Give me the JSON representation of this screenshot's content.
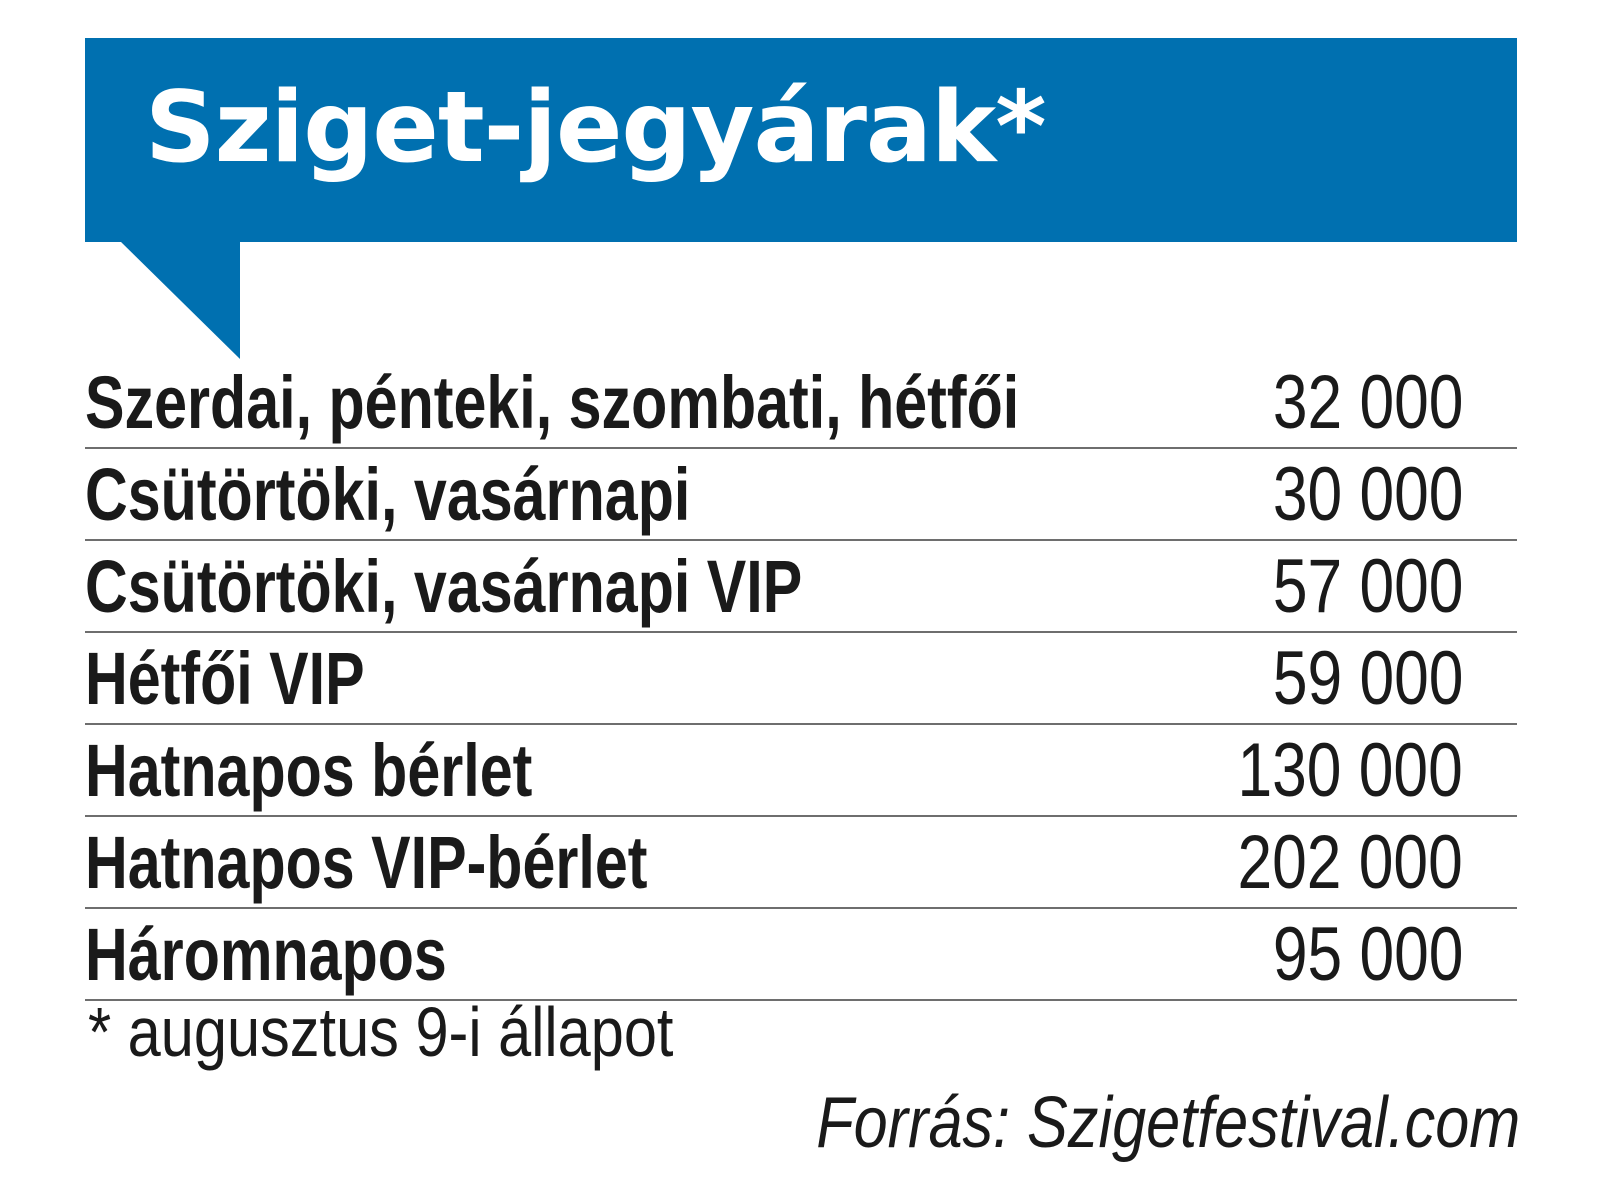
{
  "header": {
    "title": "Sziget-jegyárak*",
    "background_color": "#0070b0",
    "text_color": "#ffffff"
  },
  "table": {
    "rows": [
      {
        "label": "Szerdai, pénteki, szombati, hétfői",
        "price": "32 000"
      },
      {
        "label": "Csütörtöki, vasárnapi",
        "price": "30 000"
      },
      {
        "label": "Csütörtöki, vasárnapi VIP",
        "price": "57 000"
      },
      {
        "label": "Hétfői VIP",
        "price": "59 000"
      },
      {
        "label": "Hatnapos bérlet",
        "price": "130 000"
      },
      {
        "label": "Hatnapos VIP-bérlet",
        "price": "202 000"
      },
      {
        "label": "Háromnapos",
        "price": "95 000"
      }
    ],
    "divider_color": "#6e6e6e"
  },
  "footnote": "* augusztus 9-i állapot",
  "source": "Forrás: Szigetfestival.com"
}
